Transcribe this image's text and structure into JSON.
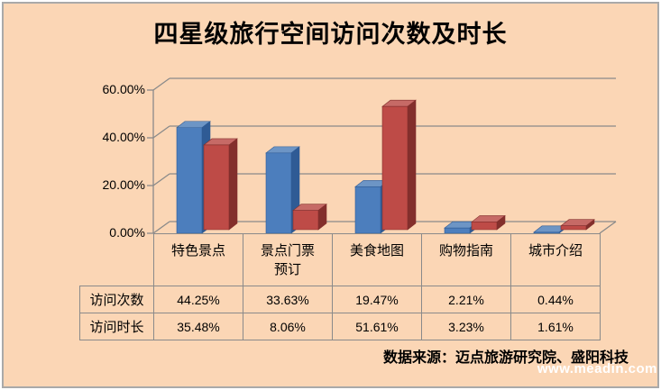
{
  "title": "四星级旅行空间访问次数及时长",
  "chart_data": {
    "type": "bar",
    "style": "3d-clustered-column",
    "title": "四星级旅行空间访问次数及时长",
    "categories": [
      "特色景点",
      "景点门票预订",
      "美食地图",
      "购物指南",
      "城市介绍"
    ],
    "series": [
      {
        "name": "访问次数",
        "color": "#4c7ebd",
        "values": [
          44.25,
          33.63,
          19.47,
          2.21,
          0.44
        ]
      },
      {
        "name": "访问时长",
        "color": "#be4b47",
        "values": [
          35.48,
          8.06,
          51.61,
          3.23,
          1.61
        ]
      }
    ],
    "unit": "%",
    "ylim": [
      0,
      60
    ],
    "yticks": [
      {
        "value": 0,
        "label": "0.00%"
      },
      {
        "value": 20,
        "label": "20.00%"
      },
      {
        "value": 40,
        "label": "40.00%"
      },
      {
        "value": 60,
        "label": "60.00%"
      }
    ],
    "legend_position": "none",
    "gridlines": "horizontal"
  },
  "data_table": {
    "col_headers": [
      "特色景点",
      "景点门票\n预订",
      "美食地图",
      "购物指南",
      "城市介绍"
    ],
    "rows": [
      {
        "header": "访问次数",
        "cells": [
          "44.25%",
          "33.63%",
          "19.47%",
          "2.21%",
          "0.44%"
        ]
      },
      {
        "header": "访问时长",
        "cells": [
          "35.48%",
          "8.06%",
          "51.61%",
          "3.23%",
          "1.61%"
        ]
      }
    ]
  },
  "footer": {
    "source": "数据来源：迈点旅游研究院、盛阳科技",
    "watermark": "www.meadin.com"
  },
  "colors": {
    "background": "#fbd6b5",
    "frame_border": "#a9a9a9",
    "grid": "#8a8a8a",
    "series1_front": "#4c7ebd",
    "series1_side": "#2f5b95",
    "series1_top": "#6d95c5",
    "series2_front": "#be4b47",
    "series2_side": "#832f2c",
    "series2_top": "#c66a66",
    "text": "#000000",
    "watermark_text": "#ffffff"
  }
}
